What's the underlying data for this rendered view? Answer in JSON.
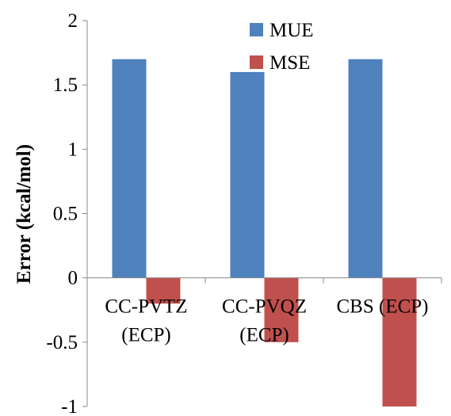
{
  "chart_data": {
    "type": "bar",
    "categories": [
      [
        "CC-PVTZ",
        "(ECP)"
      ],
      [
        "CC-PVQZ",
        "(ECP)"
      ],
      [
        "CBS (ECP)"
      ]
    ],
    "series": [
      {
        "name": "MUE",
        "values": [
          1.7,
          1.6,
          1.7
        ],
        "color": "#4F81BD"
      },
      {
        "name": "MSE",
        "values": [
          -0.2,
          -0.5,
          -1.0
        ],
        "color": "#C0504D"
      }
    ],
    "ylabel": "Error (kcal/mol)",
    "xlabel": "",
    "ylim": [
      -1,
      2
    ],
    "yticks": [
      "2",
      "1.5",
      "1",
      "0.5",
      "0",
      "-0.5",
      "-1"
    ],
    "grid": false,
    "legend_position": "top-center"
  }
}
